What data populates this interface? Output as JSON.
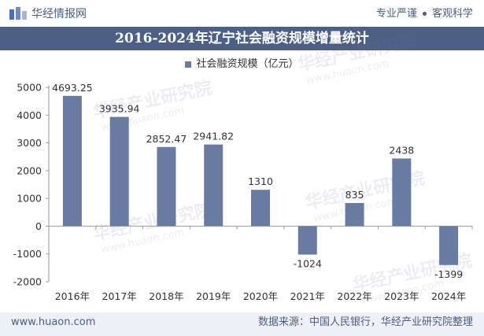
{
  "header": {
    "logo_text": "华经情报网",
    "slogan_left": "专业严谨",
    "slogan_right": "客观科学"
  },
  "title": "2016-2024年辽宁社会融资规模增量统计",
  "watermark": {
    "text": "华经产业研究院",
    "url": "www.huaon.com"
  },
  "footer": {
    "website": "www.huaon.com",
    "source": "数据来源：中国人民银行，华经产业研究院整理"
  },
  "colors": {
    "bar": "#6a7ba2",
    "title_bg": "#4e5f86",
    "text": "#333333",
    "accent": "#4a5d86"
  },
  "chart_data": {
    "type": "bar",
    "categories": [
      "2016年",
      "2017年",
      "2018年",
      "2019年",
      "2020年",
      "2021年",
      "2022年",
      "2023年",
      "2024年"
    ],
    "series": [
      {
        "name": "社会融资规模（亿元）",
        "values": [
          4693.25,
          3935.94,
          2852.47,
          2941.82,
          1310,
          -1024,
          835,
          2438,
          -1399
        ],
        "labels": [
          "4693.25",
          "3935.94",
          "2852.47",
          "2941.82",
          "1310",
          "-1024",
          "835",
          "2438",
          "-1399"
        ]
      }
    ],
    "ylim": [
      -2000,
      5000
    ],
    "yticks": [
      5000,
      4000,
      3000,
      2000,
      1000,
      0,
      -1000,
      -2000
    ],
    "grid": false,
    "legend_position": "top-center"
  }
}
